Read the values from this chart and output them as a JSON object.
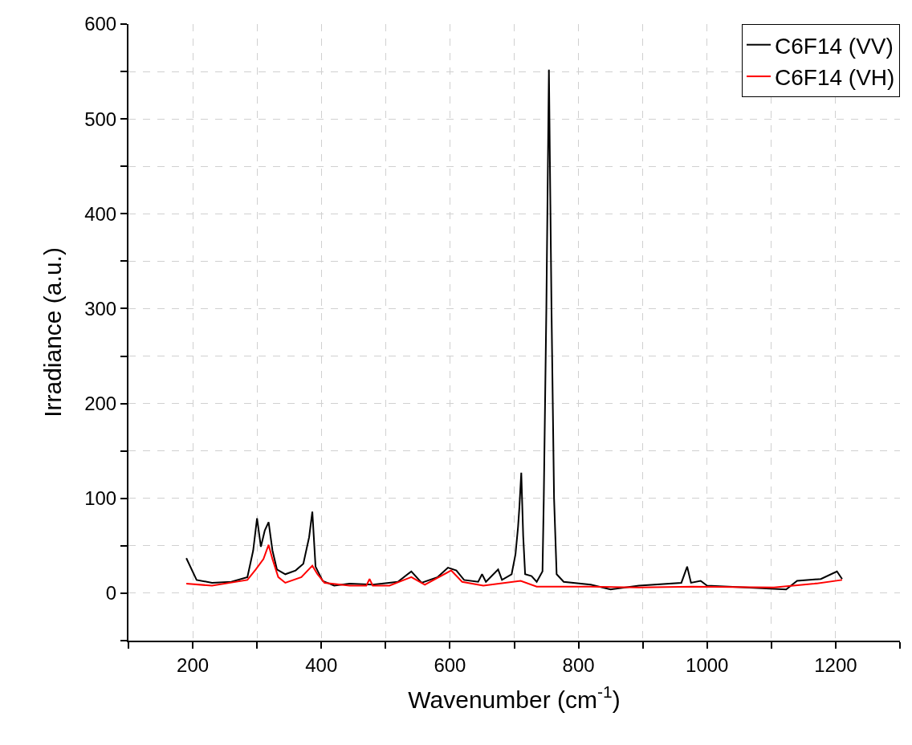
{
  "chart_data": {
    "type": "line",
    "xlabel": "Wavenumber (cm$^{-1}$)",
    "ylabel": "Irradiance (a.u.)",
    "xlim": [
      100,
      1300
    ],
    "xticks": [
      {
        "value": 100,
        "label": null
      },
      200,
      {
        "value": 300,
        "label": null
      },
      400,
      {
        "value": 500,
        "label": null
      },
      600,
      {
        "value": 700,
        "label": null
      },
      800,
      {
        "value": 900,
        "label": null
      },
      1000,
      {
        "value": 1100,
        "label": null
      },
      1200,
      {
        "value": 1300,
        "label": null
      }
    ],
    "ylim": [
      -50,
      600
    ],
    "yticks": [
      {
        "value": -50,
        "label": null
      },
      0,
      {
        "value": 50,
        "label": null
      },
      100,
      {
        "value": 150,
        "label": null
      },
      200,
      {
        "value": 250,
        "label": null
      },
      300,
      {
        "value": 350,
        "label": null
      },
      400,
      {
        "value": 450,
        "label": null
      },
      500,
      {
        "value": 550,
        "label": null
      },
      600
    ],
    "grid": true,
    "legend": "top right",
    "marker": "none",
    "line_style": "solid",
    "series": [
      {
        "name": "C6F14 (VV)",
        "color": "#000000",
        "x": [
          190,
          206,
          230,
          260,
          285,
          294,
          300,
          306,
          312,
          318,
          324,
          331,
          344,
          360,
          372,
          381,
          386,
          391,
          402,
          420,
          444,
          480,
          519,
          540,
          556,
          581,
          597,
          610,
          622,
          644,
          650,
          656,
          675,
          681,
          696,
          702,
          706,
          708,
          711,
          714,
          717,
          727,
          735,
          744,
          746,
          750,
          754,
          758,
          762,
          766,
          777,
          819,
          850,
          894,
          960,
          969,
          975,
          990,
          1000,
          1060,
          1123,
          1140,
          1177,
          1202,
          1210
        ],
        "values": [
          37,
          14,
          11,
          12,
          17,
          45,
          79,
          49,
          66,
          75,
          45,
          25,
          20,
          24,
          31,
          59,
          86,
          28,
          13,
          8,
          10,
          9,
          12,
          23,
          11,
          17,
          27,
          24,
          14,
          12,
          20,
          12,
          25,
          14,
          20,
          41,
          70,
          90,
          127,
          60,
          20,
          18,
          12,
          23,
          100,
          300,
          552,
          300,
          100,
          20,
          12,
          9,
          4,
          8,
          11,
          28,
          11,
          13,
          8,
          6,
          4,
          13,
          15,
          23,
          15
        ]
      },
      {
        "name": "C6F14 (VH)",
        "color": "#ff0000",
        "x": [
          190,
          230,
          285,
          298,
          310,
          318,
          324,
          333,
          344,
          369,
          386,
          394,
          405,
          444,
          470,
          475,
          480,
          506,
          540,
          561,
          602,
          619,
          652,
          710,
          735,
          819,
          894,
          978,
          1104,
          1167,
          1210
        ],
        "values": [
          10,
          8,
          14,
          25,
          36,
          51,
          36,
          17,
          11,
          17,
          29,
          20,
          11,
          8,
          8,
          15,
          8,
          8,
          17,
          9,
          24,
          12,
          8,
          13,
          7,
          7,
          6,
          7,
          6,
          10,
          14
        ]
      }
    ]
  }
}
